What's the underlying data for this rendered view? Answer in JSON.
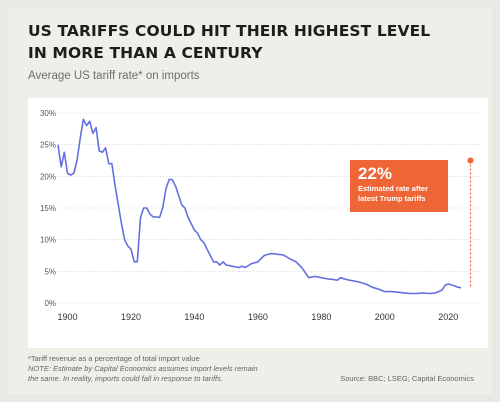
{
  "header": {
    "title_line1": "US TARIFFS COULD HIT THEIR HIGHEST LEVEL",
    "title_line2": "IN MORE THAN A CENTURY",
    "subtitle": "Average US tariff rate* on imports"
  },
  "callout": {
    "value": "22%",
    "line1": "Estimated rate after",
    "line2": "latest Trump tariffs"
  },
  "footer": {
    "note1": "*Tariff revenue as a percentage of total import value",
    "note2_line1": "NOTE: Estimate by Capital Economics assumes import levels remain",
    "note2_line2": "the same. In reality, imports could fall in response to tariffs.",
    "source": "Source: BBC; LSEG; Capital Economics"
  },
  "colors": {
    "line": "#6470e0",
    "accent": "#ee6536",
    "grid": "#cfcfcf"
  },
  "chart_data": {
    "type": "line",
    "title": "US TARIFFS COULD HIT THEIR HIGHEST LEVEL IN MORE THAN A CENTURY",
    "subtitle": "Average US tariff rate* on imports",
    "xlabel": "",
    "ylabel": "",
    "xlim": [
      1897,
      2030
    ],
    "ylim": [
      0,
      30
    ],
    "x_ticks": [
      1900,
      1920,
      1940,
      1960,
      1980,
      2000,
      2020
    ],
    "x_tick_labels": [
      "1900",
      "1920",
      "1940",
      "1960",
      "1980",
      "2000",
      "2020"
    ],
    "y_ticks": [
      0,
      5,
      10,
      15,
      20,
      25,
      30
    ],
    "y_tick_labels": [
      "0%",
      "5%",
      "10%",
      "15%",
      "20%",
      "25%",
      "30%"
    ],
    "grid": true,
    "series": [
      {
        "x": [
          1897,
          1898,
          1899,
          1900,
          1901,
          1902,
          1903,
          1904,
          1905,
          1906,
          1907,
          1908,
          1909,
          1910,
          1911,
          1912,
          1913,
          1914,
          1915,
          1916,
          1917,
          1918,
          1919,
          1920,
          1921,
          1922,
          1923,
          1924,
          1925,
          1926,
          1927,
          1928,
          1929,
          1930,
          1931,
          1932,
          1933,
          1934,
          1935,
          1936,
          1937,
          1938,
          1939,
          1940,
          1941,
          1942,
          1943,
          1944,
          1945,
          1946,
          1947,
          1948,
          1949,
          1950,
          1952,
          1954,
          1955,
          1956,
          1958,
          1960,
          1962,
          1964,
          1966,
          1968,
          1970,
          1972,
          1974,
          1976,
          1978,
          1980,
          1982,
          1984,
          1985,
          1986,
          1988,
          1990,
          1992,
          1994,
          1996,
          1998,
          2000,
          2002,
          2004,
          2006,
          2008,
          2010,
          2012,
          2014,
          2016,
          2018,
          2019,
          2020,
          2022,
          2023,
          2024
        ],
        "values": [
          25.0,
          21.5,
          23.8,
          20.5,
          20.2,
          20.5,
          22.5,
          26.0,
          29.0,
          28.0,
          28.7,
          26.8,
          27.7,
          24.0,
          23.8,
          24.5,
          22.0,
          22.0,
          18.5,
          15.5,
          12.5,
          10.0,
          9.0,
          8.5,
          6.5,
          6.5,
          13.5,
          15.0,
          15.0,
          14.0,
          13.6,
          13.6,
          13.5,
          15.0,
          18.0,
          19.5,
          19.5,
          18.5,
          17.0,
          15.5,
          15.0,
          13.5,
          12.5,
          11.5,
          11.0,
          10.0,
          9.5,
          8.5,
          7.5,
          6.5,
          6.5,
          6.0,
          6.5,
          6.0,
          5.8,
          5.6,
          5.8,
          5.6,
          6.2,
          6.5,
          7.5,
          7.8,
          7.7,
          7.6,
          7.0,
          6.5,
          5.5,
          4.0,
          4.2,
          4.0,
          3.8,
          3.7,
          3.6,
          4.0,
          3.7,
          3.5,
          3.3,
          3.0,
          2.5,
          2.2,
          1.8,
          1.8,
          1.7,
          1.6,
          1.5,
          1.5,
          1.6,
          1.5,
          1.6,
          2.0,
          2.8,
          3.0,
          2.7,
          2.5,
          2.4
        ]
      }
    ],
    "annotation": {
      "x": 2027,
      "y": 22.5,
      "label": "22%",
      "text": "Estimated rate after latest Trump tariffs"
    }
  }
}
